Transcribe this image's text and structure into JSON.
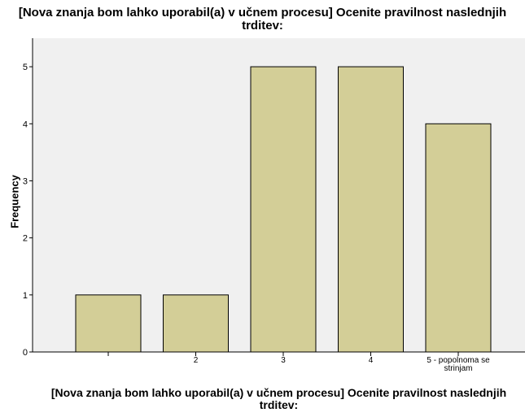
{
  "chart_data": {
    "type": "bar",
    "title": "[Nova znanja bom lahko uporabil(a) v učnem procesu] Ocenite pravilnost naslednjih trditev:",
    "xlabel": "[Nova znanja bom lahko uporabil(a) v učnem procesu] Ocenite pravilnost naslednjih trditev:",
    "ylabel": "Frequency",
    "categories": [
      "",
      "2",
      "3",
      "4",
      "5 - popolnoma se strinjam"
    ],
    "values": [
      1,
      1,
      5,
      5,
      4
    ],
    "yticks": [
      "0",
      "1",
      "2",
      "3",
      "4",
      "5"
    ],
    "ylim": [
      0,
      5.5
    ],
    "grid": false,
    "colors": {
      "bar_fill": "#d3ce97",
      "bar_stroke": "#000000",
      "plot_bg": "#f0f0f0"
    }
  }
}
